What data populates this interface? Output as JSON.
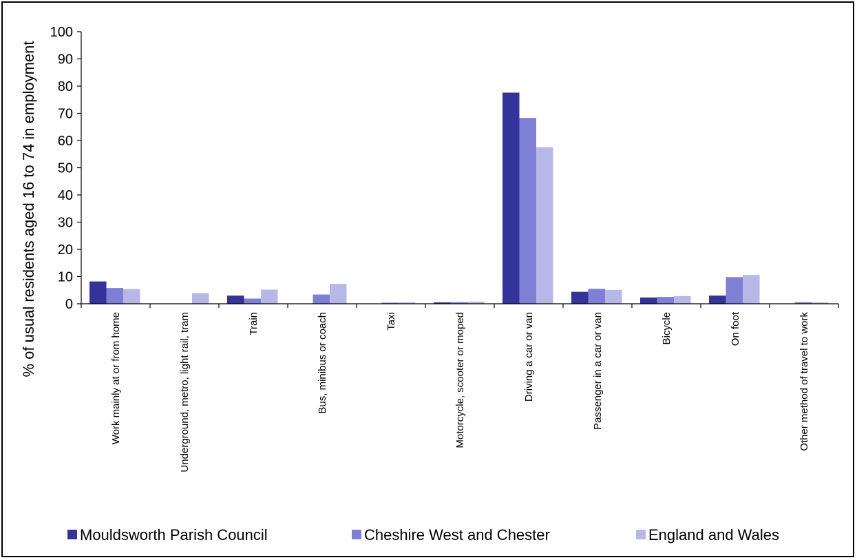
{
  "chart_data": {
    "type": "bar",
    "title": "",
    "xlabel": "",
    "ylabel": "% of usual residents aged 16 to 74 in employment",
    "ylim": [
      0,
      100
    ],
    "yticks": [
      0,
      10,
      20,
      30,
      40,
      50,
      60,
      70,
      80,
      90,
      100
    ],
    "grid": false,
    "legend_position": "bottom",
    "categories": [
      "Work mainly at or from home",
      "Underground, metro, light rail, tram",
      "Train",
      "Bus, minibus or coach",
      "Taxi",
      "Motorcycle, scooter or moped",
      "Driving a car or van",
      "Passenger in a car or van",
      "Bicycle",
      "On foot",
      "Other method of travel to work"
    ],
    "series": [
      {
        "name": "Mouldsworth Parish Council",
        "color": "#333399",
        "values": [
          8.2,
          0,
          3.0,
          0,
          0,
          0.5,
          77.6,
          4.4,
          2.3,
          3.0,
          0
        ]
      },
      {
        "name": "Cheshire West and Chester",
        "color": "#7F7FD6",
        "values": [
          5.8,
          0.1,
          1.9,
          3.4,
          0.4,
          0.6,
          68.3,
          5.5,
          2.5,
          9.8,
          0.6
        ]
      },
      {
        "name": "England and Wales",
        "color": "#B7B7E8",
        "values": [
          5.4,
          3.9,
          5.2,
          7.3,
          0.5,
          0.8,
          57.5,
          5.1,
          2.8,
          10.6,
          0.5
        ]
      }
    ]
  }
}
